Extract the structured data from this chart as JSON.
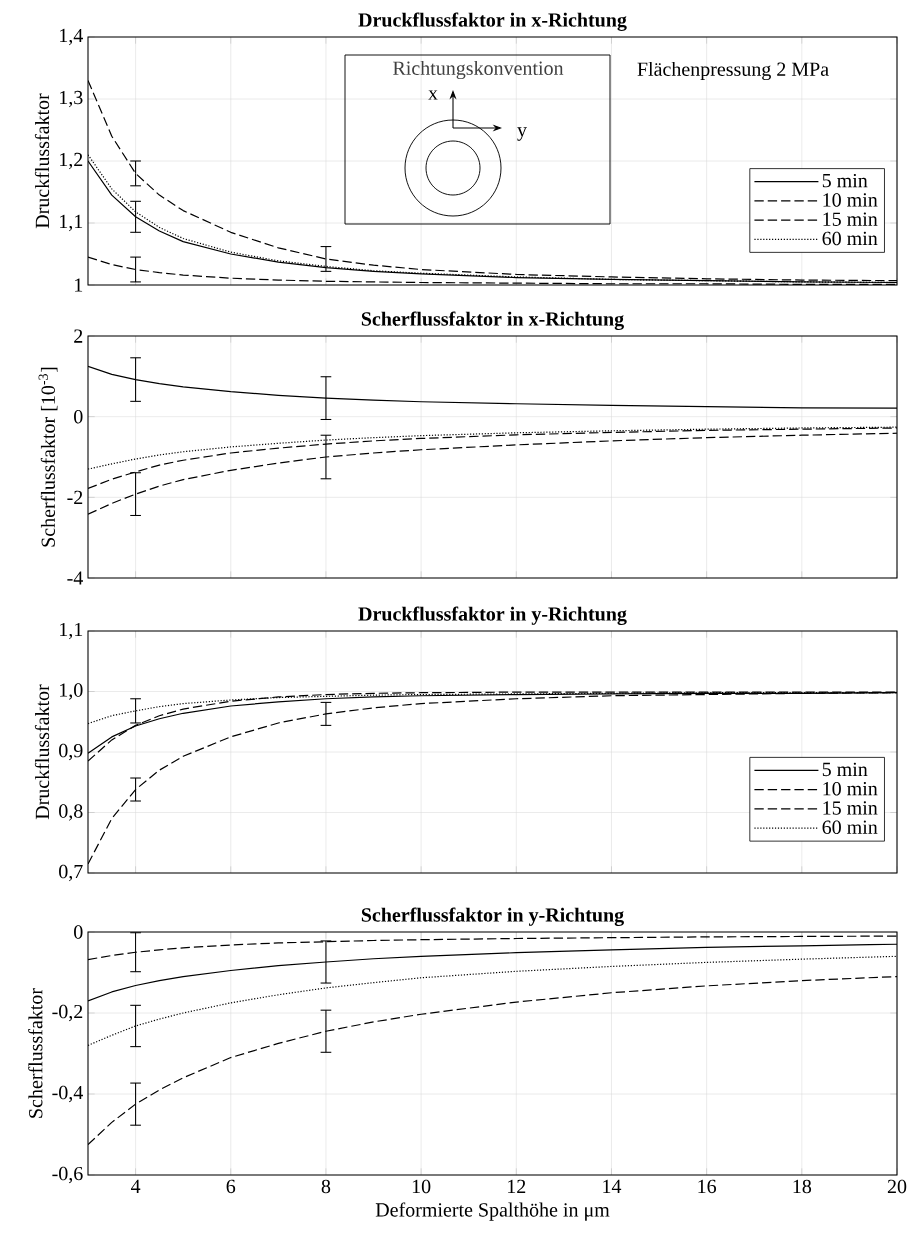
{
  "chart_data": [
    {
      "type": "line",
      "title": "Druckflussfaktor in x-Richtung",
      "ylabel": "Druckflussfaktor",
      "x": [
        3,
        3.5,
        4,
        4.5,
        5,
        6,
        7,
        8,
        9,
        10,
        12,
        14,
        16,
        18,
        20
      ],
      "series": [
        {
          "name": "5 min",
          "color": "#000000",
          "line_style": "solid",
          "values": [
            1.2,
            1.145,
            1.11,
            1.087,
            1.07,
            1.05,
            1.037,
            1.028,
            1.022,
            1.018,
            1.012,
            1.009,
            1.007,
            1.005,
            1.004
          ],
          "errors": [
            null,
            null,
            0.025,
            null,
            null,
            null,
            null,
            null,
            null,
            null,
            null,
            null,
            null,
            null,
            null
          ]
        },
        {
          "name": "10 min",
          "color": "#000000",
          "line_style": "dashed",
          "values": [
            1.33,
            1.24,
            1.18,
            1.145,
            1.12,
            1.085,
            1.06,
            1.042,
            1.032,
            1.025,
            1.017,
            1.013,
            1.01,
            1.008,
            1.007
          ],
          "errors": [
            null,
            null,
            0.02,
            null,
            null,
            null,
            null,
            0.02,
            null,
            null,
            null,
            null,
            null,
            null,
            null
          ]
        },
        {
          "name": "15 min",
          "color": "#000000",
          "line_style": "dashed",
          "values": [
            1.045,
            1.033,
            1.025,
            1.02,
            1.016,
            1.011,
            1.008,
            1.006,
            1.005,
            1.004,
            1.003,
            1.002,
            1.002,
            1.001,
            1.001
          ],
          "errors": [
            null,
            null,
            0.02,
            null,
            null,
            null,
            null,
            null,
            null,
            null,
            null,
            null,
            null,
            null,
            null
          ]
        },
        {
          "name": "60 min",
          "color": "#000000",
          "line_style": "dotted",
          "values": [
            1.21,
            1.155,
            1.118,
            1.093,
            1.075,
            1.053,
            1.039,
            1.03,
            1.023,
            1.019,
            1.013,
            1.009,
            1.007,
            1.005,
            1.004
          ]
        }
      ],
      "xlim": [
        3,
        20
      ],
      "xticks": [
        4,
        6,
        8,
        10,
        12,
        14,
        16,
        18,
        20
      ],
      "ylim": [
        1,
        1.4
      ],
      "yticks": [
        1,
        {
          "value": 1.1,
          "label": "1,1"
        },
        {
          "value": 1.2,
          "label": "1,2"
        },
        {
          "value": 1.3,
          "label": "1,3"
        },
        {
          "value": 1.4,
          "label": "1,4"
        }
      ],
      "grid": true,
      "legend": "bottom right",
      "marker": "none",
      "tick_labels": "y",
      "annotations": [
        "Richtungskonvention",
        "x",
        "y",
        "Flächenpressung 2 MPa"
      ]
    },
    {
      "type": "line",
      "title": "Scherflussfaktor in x-Richtung",
      "ylabel": "Scherflussfaktor [10$^{-3}$]",
      "x": [
        3,
        3.5,
        4,
        4.5,
        5,
        6,
        7,
        8,
        9,
        10,
        12,
        14,
        16,
        18,
        20
      ],
      "series": [
        {
          "color": "#000000",
          "line_style": "solid",
          "values": [
            1.25,
            1.05,
            0.92,
            0.82,
            0.74,
            0.62,
            0.53,
            0.46,
            0.41,
            0.37,
            0.32,
            0.28,
            0.25,
            0.22,
            0.21
          ],
          "errors": [
            null,
            null,
            0.54,
            null,
            null,
            null,
            null,
            0.53,
            null,
            null,
            null,
            null,
            null,
            null,
            null
          ]
        },
        {
          "color": "#000000",
          "line_style": "dashed",
          "values": [
            -1.78,
            -1.55,
            -1.37,
            -1.2,
            -1.08,
            -0.9,
            -0.78,
            -0.68,
            -0.6,
            -0.54,
            -0.45,
            -0.39,
            -0.34,
            -0.31,
            -0.28
          ]
        },
        {
          "color": "#000000",
          "line_style": "dashed",
          "values": [
            -2.42,
            -2.15,
            -1.92,
            -1.72,
            -1.56,
            -1.33,
            -1.15,
            -1.0,
            -0.9,
            -0.82,
            -0.7,
            -0.6,
            -0.52,
            -0.46,
            -0.41
          ],
          "errors": [
            null,
            null,
            0.53,
            null,
            null,
            null,
            null,
            0.54,
            null,
            null,
            null,
            null,
            null,
            null,
            null
          ]
        },
        {
          "color": "#000000",
          "line_style": "dotted",
          "values": [
            -1.3,
            -1.17,
            -1.05,
            -0.95,
            -0.87,
            -0.75,
            -0.66,
            -0.58,
            -0.52,
            -0.47,
            -0.4,
            -0.35,
            -0.31,
            -0.28,
            -0.26
          ]
        }
      ],
      "xlim": [
        3,
        20
      ],
      "xticks": [
        4,
        6,
        8,
        10,
        12,
        14,
        16,
        18,
        20
      ],
      "ylim": [
        -4,
        2
      ],
      "yticks": [
        -4,
        -2,
        0,
        2
      ],
      "grid": true,
      "marker": "none",
      "tick_labels": "y"
    },
    {
      "type": "line",
      "title": "Druckflussfaktor in y-Richtung",
      "ylabel": "Druckflussfaktor",
      "x": [
        3,
        3.5,
        4,
        4.5,
        5,
        6,
        7,
        8,
        9,
        10,
        12,
        14,
        16,
        18,
        20
      ],
      "series": [
        {
          "name": "5 min",
          "color": "#000000",
          "line_style": "solid",
          "values": [
            0.898,
            0.925,
            0.943,
            0.955,
            0.964,
            0.976,
            0.983,
            0.988,
            0.991,
            0.993,
            0.995,
            0.996,
            0.997,
            0.997,
            0.998
          ]
        },
        {
          "name": "10 min",
          "color": "#000000",
          "line_style": "dashed",
          "values": [
            0.715,
            0.79,
            0.838,
            0.87,
            0.893,
            0.925,
            0.948,
            0.963,
            0.973,
            0.98,
            0.988,
            0.993,
            0.995,
            0.997,
            0.998
          ],
          "errors": [
            null,
            null,
            0.019,
            null,
            null,
            null,
            null,
            0.019,
            null,
            null,
            null,
            null,
            null,
            null,
            null
          ]
        },
        {
          "name": "15 min",
          "color": "#000000",
          "line_style": "dashed",
          "values": [
            0.885,
            0.92,
            0.944,
            0.96,
            0.971,
            0.984,
            0.991,
            0.995,
            0.997,
            0.998,
            0.999,
            0.999,
            0.999,
            0.999,
            0.999
          ]
        },
        {
          "name": "60 min",
          "color": "#000000",
          "line_style": "dotted",
          "values": [
            0.947,
            0.96,
            0.968,
            0.975,
            0.98,
            0.986,
            0.99,
            0.992,
            0.994,
            0.995,
            0.996,
            0.997,
            0.998,
            0.998,
            0.998
          ],
          "errors": [
            null,
            null,
            0.02,
            null,
            null,
            null,
            null,
            null,
            null,
            null,
            null,
            null,
            null,
            null,
            null
          ]
        }
      ],
      "xlim": [
        3,
        20
      ],
      "xticks": [
        4,
        6,
        8,
        10,
        12,
        14,
        16,
        18,
        20
      ],
      "ylim": [
        0.7,
        1.1
      ],
      "yticks": [
        {
          "value": 0.7,
          "label": "0,7"
        },
        {
          "value": 0.8,
          "label": "0,8"
        },
        {
          "value": 0.9,
          "label": "0,9"
        },
        {
          "value": 1.0,
          "label": "1,0"
        },
        {
          "value": 1.1,
          "label": "1,1"
        }
      ],
      "grid": true,
      "legend": "bottom right",
      "marker": "none",
      "tick_labels": "y"
    },
    {
      "type": "line",
      "title": "Scherflussfaktor in y-Richtung",
      "ylabel": "Scherflussfaktor",
      "xlabel": "Deformierte Spalthöhe in μm",
      "x": [
        3,
        3.5,
        4,
        4.5,
        5,
        6,
        7,
        8,
        9,
        10,
        12,
        14,
        16,
        18,
        20
      ],
      "series": [
        {
          "color": "#000000",
          "line_style": "solid",
          "values": [
            -0.17,
            -0.148,
            -0.132,
            -0.12,
            -0.11,
            -0.095,
            -0.083,
            -0.074,
            -0.066,
            -0.06,
            -0.051,
            -0.044,
            -0.038,
            -0.034,
            -0.03
          ],
          "errors": [
            null,
            null,
            null,
            null,
            null,
            null,
            null,
            0.052,
            null,
            null,
            null,
            null,
            null,
            null,
            null
          ]
        },
        {
          "color": "#000000",
          "line_style": "dashed",
          "values": [
            -0.068,
            -0.058,
            -0.05,
            -0.044,
            -0.039,
            -0.032,
            -0.027,
            -0.024,
            -0.021,
            -0.019,
            -0.016,
            -0.014,
            -0.012,
            -0.011,
            -0.01
          ],
          "errors": [
            null,
            null,
            0.048,
            null,
            null,
            null,
            null,
            null,
            null,
            null,
            null,
            null,
            null,
            null,
            null
          ]
        },
        {
          "color": "#000000",
          "line_style": "dashed",
          "values": [
            -0.525,
            -0.47,
            -0.425,
            -0.39,
            -0.36,
            -0.31,
            -0.275,
            -0.245,
            -0.222,
            -0.203,
            -0.173,
            -0.15,
            -0.133,
            -0.12,
            -0.11
          ],
          "errors": [
            null,
            null,
            0.052,
            null,
            null,
            null,
            null,
            0.052,
            null,
            null,
            null,
            null,
            null,
            null,
            null
          ]
        },
        {
          "color": "#000000",
          "line_style": "dotted",
          "values": [
            -0.28,
            -0.255,
            -0.232,
            -0.215,
            -0.2,
            -0.175,
            -0.155,
            -0.138,
            -0.125,
            -0.113,
            -0.097,
            -0.085,
            -0.075,
            -0.067,
            -0.06
          ],
          "errors": [
            null,
            null,
            0.051,
            null,
            null,
            null,
            null,
            null,
            null,
            null,
            null,
            null,
            null,
            null,
            null
          ]
        }
      ],
      "xlim": [
        3,
        20
      ],
      "xticks": [
        4,
        6,
        8,
        10,
        12,
        14,
        16,
        18,
        20
      ],
      "ylim": [
        -0.6,
        0
      ],
      "yticks": [
        {
          "value": -0.6,
          "label": "-0,6"
        },
        {
          "value": -0.4,
          "label": "-0,4"
        },
        {
          "value": -0.2,
          "label": "-0,2"
        },
        0
      ],
      "grid": true,
      "marker": "none"
    }
  ]
}
